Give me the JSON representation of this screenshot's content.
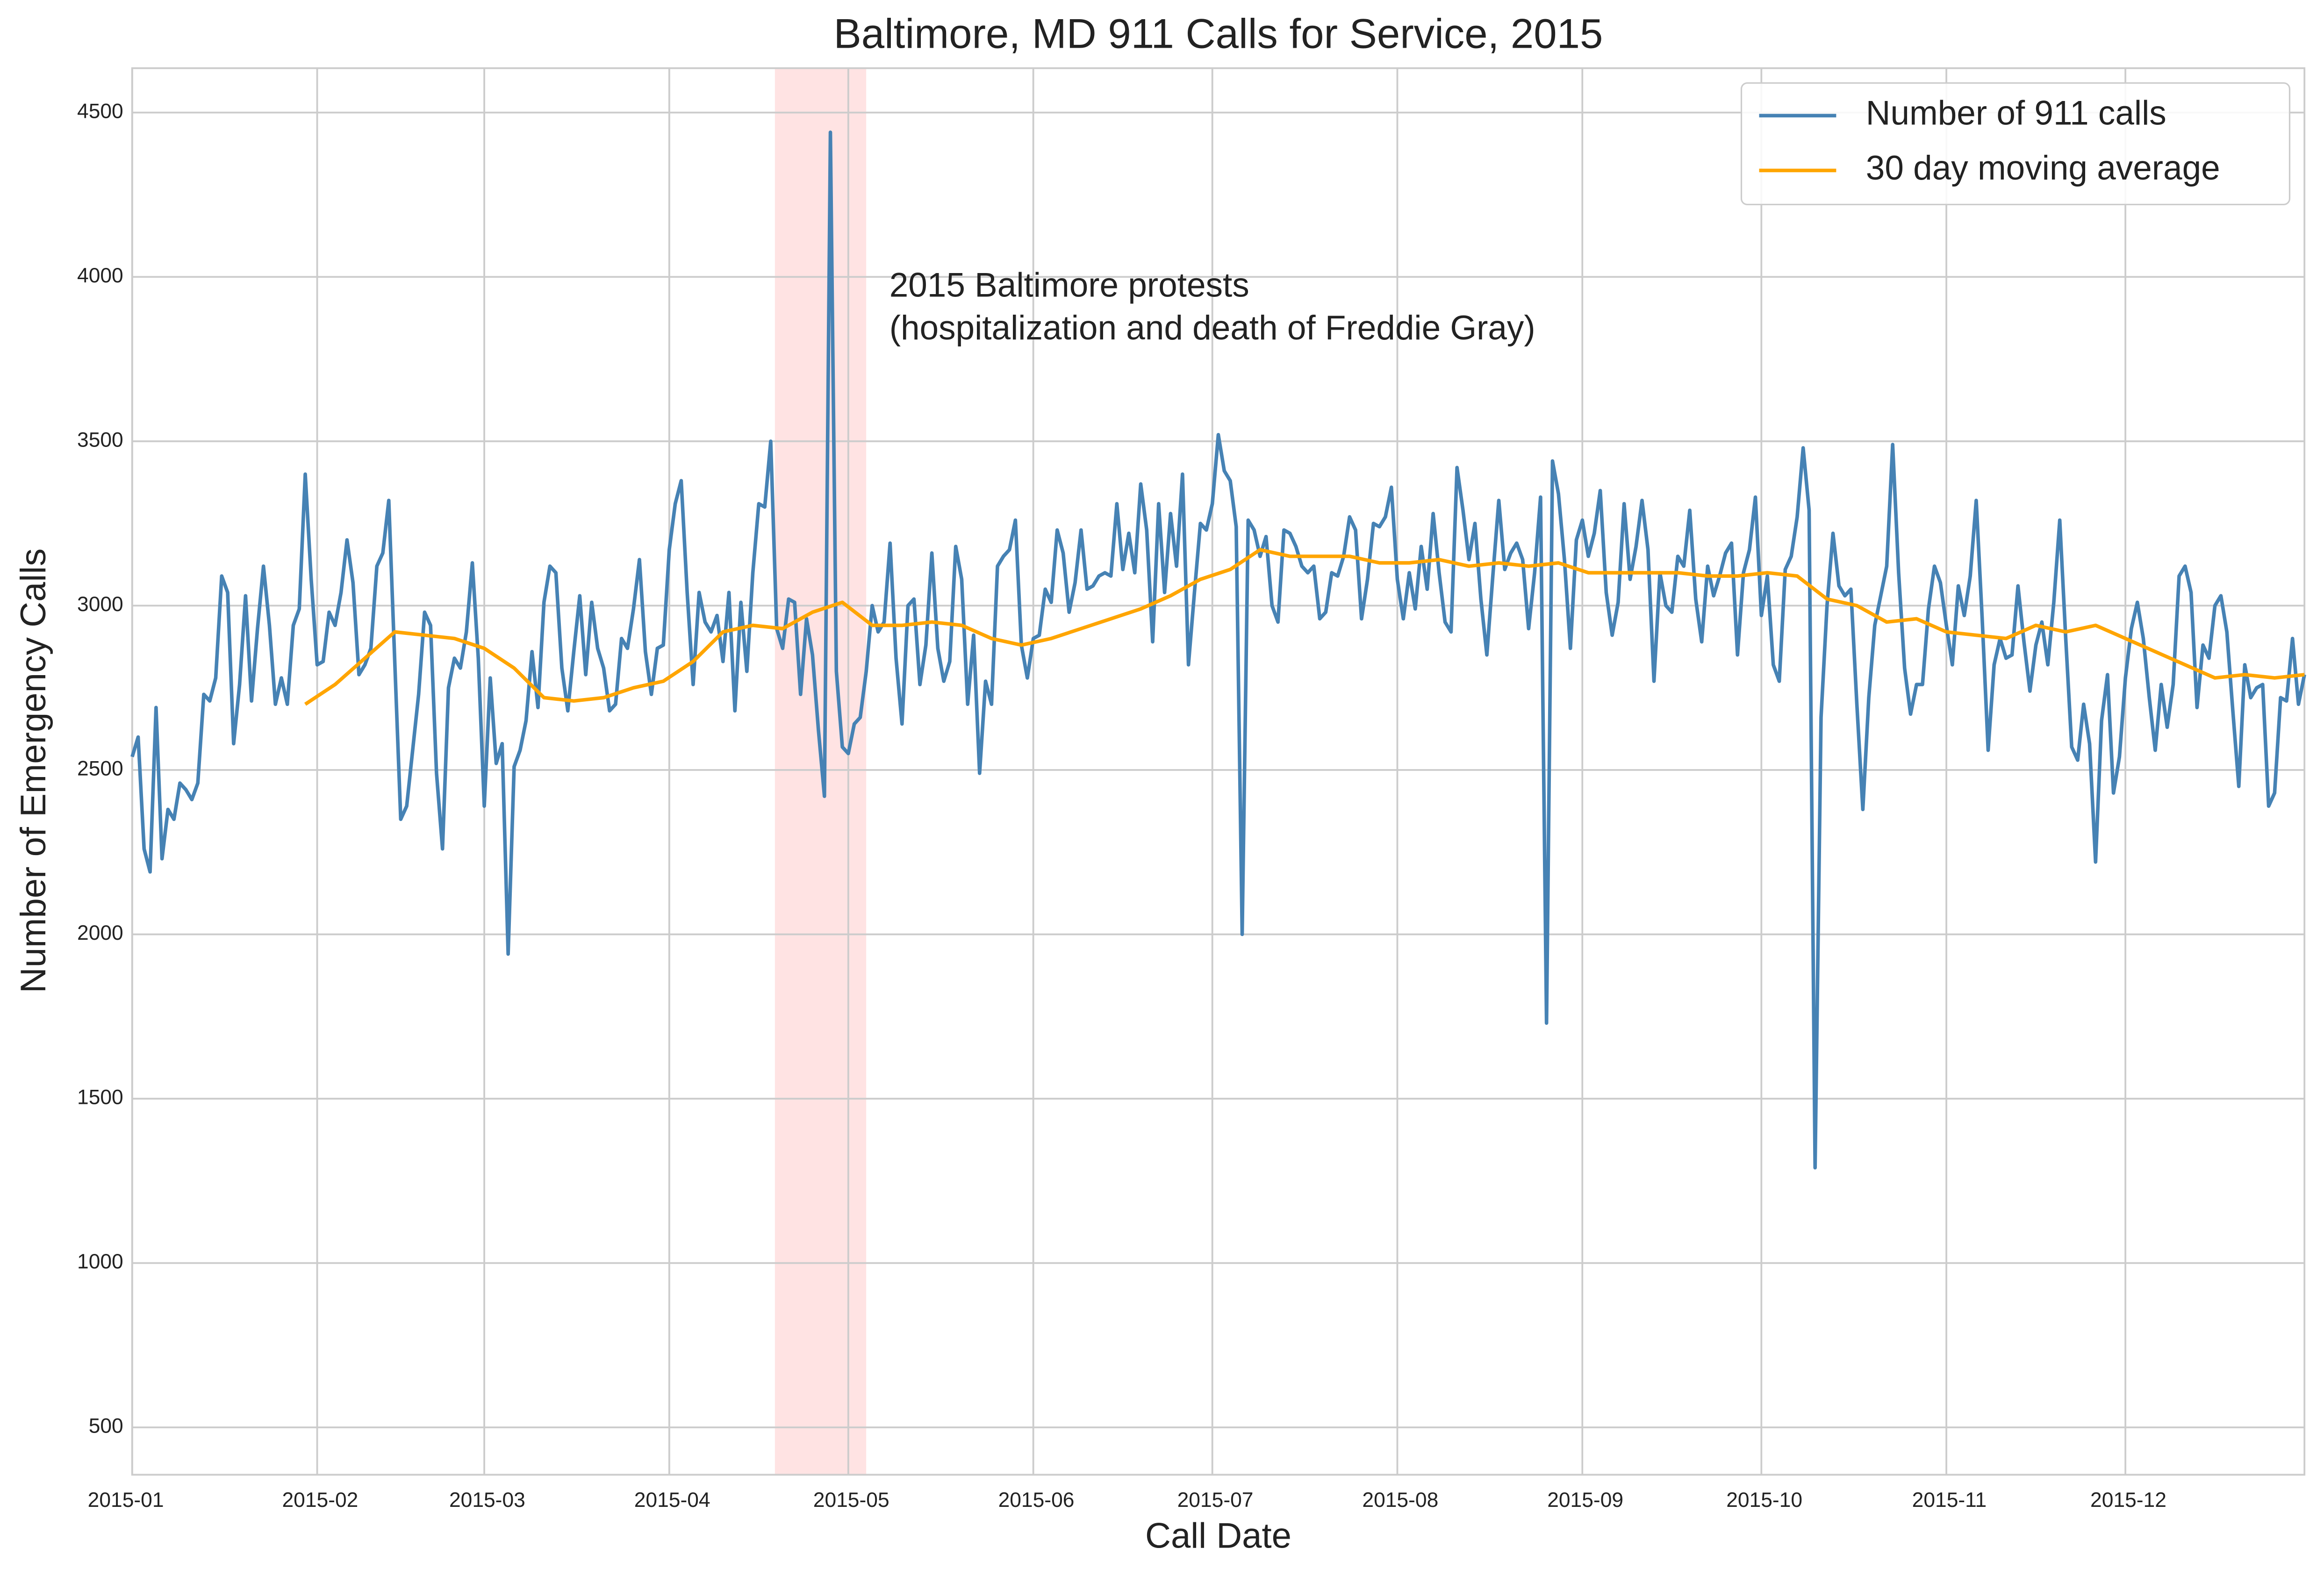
{
  "chart_data": {
    "type": "line",
    "title": "Baltimore, MD 911 Calls for Service, 2015",
    "xlabel": "Call Date",
    "ylabel": "Number of Emergency Calls",
    "annotation": [
      "2015 Baltimore protests",
      "(hospitalization and death of Freddie Gray)"
    ],
    "highlight_span": [
      107.7,
      123
    ],
    "highlight_color": "#ff9999",
    "xlim": [
      0,
      364
    ],
    "ylim": [
      356,
      4635
    ],
    "xticks": [
      {
        "value": 0,
        "label": "2015-01"
      },
      {
        "value": 31,
        "label": "2015-02"
      },
      {
        "value": 59,
        "label": "2015-03"
      },
      {
        "value": 90,
        "label": "2015-04"
      },
      {
        "value": 120,
        "label": "2015-05"
      },
      {
        "value": 151,
        "label": "2015-06"
      },
      {
        "value": 181,
        "label": "2015-07"
      },
      {
        "value": 212,
        "label": "2015-08"
      },
      {
        "value": 243,
        "label": "2015-09"
      },
      {
        "value": 273,
        "label": "2015-10"
      },
      {
        "value": 304,
        "label": "2015-11"
      },
      {
        "value": 334,
        "label": "2015-12"
      }
    ],
    "yticks": [
      500,
      1000,
      1500,
      2000,
      2500,
      3000,
      3500,
      4000,
      4500
    ],
    "grid": true,
    "legend": "upper right",
    "series": [
      {
        "name": "Number of 911 calls",
        "color": "#4682b4",
        "x": [
          0,
          1,
          2,
          3,
          4,
          5,
          6,
          7,
          8,
          9,
          10,
          11,
          12,
          13,
          14,
          15,
          16,
          17,
          18,
          19,
          20,
          21,
          22,
          23,
          24,
          25,
          26,
          27,
          28,
          29,
          30,
          31,
          32,
          33,
          34,
          35,
          36,
          37,
          38,
          39,
          40,
          41,
          42,
          43,
          44,
          45,
          46,
          47,
          48,
          49,
          50,
          51,
          52,
          53,
          54,
          55,
          56,
          57,
          58,
          59,
          60,
          61,
          62,
          63,
          64,
          65,
          66,
          67,
          68,
          69,
          70,
          71,
          72,
          73,
          74,
          75,
          76,
          77,
          78,
          79,
          80,
          81,
          82,
          83,
          84,
          85,
          86,
          87,
          88,
          89,
          90,
          91,
          92,
          93,
          94,
          95,
          96,
          97,
          98,
          99,
          100,
          101,
          102,
          103,
          104,
          105,
          106,
          107,
          108,
          109,
          110,
          111,
          112,
          113,
          114,
          115,
          116,
          117,
          118,
          119,
          120,
          121,
          122,
          123,
          124,
          125,
          126,
          127,
          128,
          129,
          130,
          131,
          132,
          133,
          134,
          135,
          136,
          137,
          138,
          139,
          140,
          141,
          142,
          143,
          144,
          145,
          146,
          147,
          148,
          149,
          150,
          151,
          152,
          153,
          154,
          155,
          156,
          157,
          158,
          159,
          160,
          161,
          162,
          163,
          164,
          165,
          166,
          167,
          168,
          169,
          170,
          171,
          172,
          173,
          174,
          175,
          176,
          177,
          178,
          179,
          180,
          181,
          182,
          183,
          184,
          185,
          186,
          187,
          188,
          189,
          190,
          191,
          192,
          193,
          194,
          195,
          196,
          197,
          198,
          199,
          200,
          201,
          202,
          203,
          204,
          205,
          206,
          207,
          208,
          209,
          210,
          211,
          212,
          213,
          214,
          215,
          216,
          217,
          218,
          219,
          220,
          221,
          222,
          223,
          224,
          225,
          226,
          227,
          228,
          229,
          230,
          231,
          232,
          233,
          234,
          235,
          236,
          237,
          238,
          239,
          240,
          241,
          242,
          243,
          244,
          245,
          246,
          247,
          248,
          249,
          250,
          251,
          252,
          253,
          254,
          255,
          256,
          257,
          258,
          259,
          260,
          261,
          262,
          263,
          264,
          265,
          266,
          267,
          268,
          269,
          270,
          271,
          272,
          273,
          274,
          275,
          276,
          277,
          278,
          279,
          280,
          281,
          282,
          283,
          284,
          285,
          286,
          287,
          288,
          289,
          290,
          291,
          292,
          293,
          294,
          295,
          296,
          297,
          298,
          299,
          300,
          301,
          302,
          303,
          304,
          305,
          306,
          307,
          308,
          309,
          310,
          311,
          312,
          313,
          314,
          315,
          316,
          317,
          318,
          319,
          320,
          321,
          322,
          323,
          324,
          325,
          326,
          327,
          328,
          329,
          330,
          331,
          332,
          333,
          334,
          335,
          336,
          337,
          338,
          339,
          340,
          341,
          342,
          343,
          344,
          345,
          346,
          347,
          348,
          349,
          350,
          351,
          352,
          353,
          354,
          355,
          356,
          357,
          358,
          359,
          360,
          361,
          362,
          363,
          364
        ],
        "values": [
          2540,
          2600,
          2260,
          2190,
          2690,
          2230,
          2380,
          2350,
          2460,
          2440,
          2410,
          2460,
          2730,
          2710,
          2780,
          3090,
          3040,
          2580,
          2760,
          3030,
          2710,
          2930,
          3120,
          2940,
          2700,
          2780,
          2700,
          2940,
          2990,
          3400,
          3080,
          2820,
          2830,
          2980,
          2940,
          3040,
          3200,
          3070,
          2790,
          2820,
          2870,
          3120,
          3160,
          3320,
          2830,
          2350,
          2390,
          2560,
          2730,
          2980,
          2940,
          2490,
          2260,
          2750,
          2840,
          2810,
          2920,
          3130,
          2840,
          2390,
          2780,
          2520,
          2580,
          1940,
          2510,
          2560,
          2650,
          2860,
          2690,
          3010,
          3120,
          3100,
          2810,
          2680,
          2860,
          3030,
          2790,
          3010,
          2870,
          2810,
          2680,
          2700,
          2900,
          2870,
          2990,
          3140,
          2860,
          2730,
          2870,
          2880,
          3170,
          3310,
          3380,
          3040,
          2760,
          3040,
          2950,
          2920,
          2970,
          2830,
          3040,
          2680,
          3010,
          2800,
          3100,
          3310,
          3300,
          3500,
          2930,
          2870,
          3020,
          3010,
          2730,
          2960,
          2850,
          2620,
          2420,
          4440,
          2800,
          2570,
          2550,
          2640,
          2660,
          2800,
          3000,
          2920,
          2950,
          3190,
          2840,
          2640,
          3000,
          3020,
          2760,
          2880,
          3160,
          2870,
          2770,
          2830,
          3180,
          3080,
          2700,
          2910,
          2490,
          2770,
          2700,
          3120,
          3150,
          3170,
          3260,
          2880,
          2780,
          2900,
          2910,
          3050,
          3010,
          3230,
          3160,
          2980,
          3070,
          3230,
          3050,
          3060,
          3090,
          3100,
          3090,
          3310,
          3110,
          3220,
          3100,
          3370,
          3230,
          2890,
          3310,
          3040,
          3280,
          3120,
          3400,
          2820,
          3040,
          3250,
          3230,
          3310,
          3520,
          3410,
          3380,
          3240,
          2000,
          3260,
          3230,
          3150,
          3210,
          3000,
          2950,
          3230,
          3220,
          3180,
          3120,
          3100,
          3120,
          2960,
          2980,
          3100,
          3090,
          3150,
          3270,
          3230,
          2960,
          3080,
          3250,
          3240,
          3270,
          3360,
          3080,
          2960,
          3100,
          2990,
          3180,
          3050,
          3280,
          3100,
          2950,
          2920,
          3420,
          3290,
          3140,
          3250,
          3020,
          2850,
          3090,
          3320,
          3110,
          3160,
          3190,
          3140,
          2930,
          3100,
          3330,
          1730,
          3440,
          3340,
          3140,
          2870,
          3200,
          3260,
          3150,
          3220,
          3350,
          3040,
          2910,
          3010,
          3310,
          3080,
          3180,
          3320,
          3170,
          2770,
          3100,
          3000,
          2980,
          3150,
          3120,
          3290,
          3020,
          2890,
          3120,
          3030,
          3090,
          3160,
          3190,
          2850,
          3100,
          3170,
          3330,
          2970,
          3090,
          2820,
          2770,
          3110,
          3150,
          3270,
          3480,
          3290,
          1290,
          2660,
          3000,
          3220,
          3060,
          3030,
          3050,
          2700,
          2380,
          2720,
          2940,
          3030,
          3120,
          3490,
          3100,
          2810,
          2670,
          2760,
          2760,
          2990,
          3120,
          3070,
          2940,
          2820,
          3060,
          2970,
          3090,
          3320,
          2960,
          2560,
          2820,
          2900,
          2840,
          2850,
          3060,
          2890,
          2740,
          2880,
          2950,
          2820,
          3010,
          3260,
          2900,
          2570,
          2530,
          2700,
          2580,
          2220,
          2650,
          2790,
          2430,
          2540,
          2780,
          2930,
          3010,
          2900,
          2720,
          2560,
          2760,
          2630,
          2760,
          3090,
          3120,
          3040,
          2690,
          2880,
          2840,
          3000,
          3030,
          2920,
          2680,
          2450,
          2820,
          2720,
          2750,
          2760,
          2390,
          2430,
          2720,
          2710,
          2900,
          2700,
          2790
        ]
      },
      {
        "name": "30 day moving average",
        "color": "#ffa500",
        "x": [
          29,
          34,
          39,
          44,
          49,
          54,
          59,
          64,
          69,
          74,
          79,
          84,
          89,
          94,
          99,
          104,
          109,
          114,
          119,
          124,
          129,
          134,
          139,
          144,
          149,
          154,
          159,
          164,
          169,
          174,
          179,
          184,
          189,
          194,
          199,
          204,
          209,
          214,
          219,
          224,
          229,
          234,
          239,
          244,
          249,
          254,
          259,
          264,
          269,
          274,
          279,
          284,
          289,
          294,
          299,
          304,
          309,
          314,
          319,
          324,
          329,
          334,
          339,
          344,
          349,
          354,
          359,
          364
        ],
        "values": [
          2700,
          2760,
          2840,
          2920,
          2910,
          2900,
          2870,
          2810,
          2720,
          2710,
          2720,
          2750,
          2770,
          2830,
          2920,
          2940,
          2930,
          2980,
          3010,
          2940,
          2940,
          2950,
          2940,
          2900,
          2880,
          2900,
          2930,
          2960,
          2990,
          3030,
          3080,
          3110,
          3170,
          3150,
          3150,
          3150,
          3130,
          3130,
          3140,
          3120,
          3130,
          3120,
          3130,
          3100,
          3100,
          3100,
          3100,
          3090,
          3090,
          3100,
          3090,
          3020,
          3000,
          2950,
          2960,
          2920,
          2910,
          2900,
          2940,
          2920,
          2940,
          2900,
          2860,
          2820,
          2780,
          2790,
          2780,
          2790
        ]
      }
    ]
  }
}
